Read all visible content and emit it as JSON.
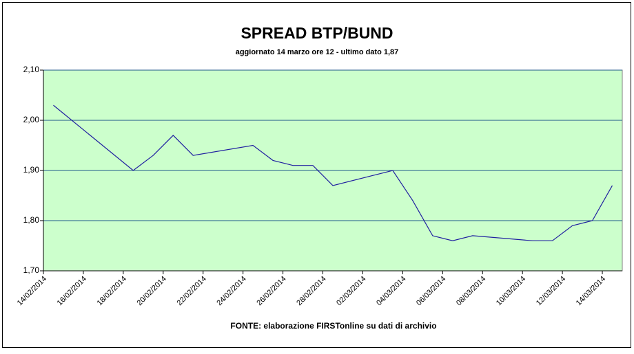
{
  "chart_data": {
    "type": "line",
    "title": "SPREAD BTP/BUND",
    "subtitle": "aggiornato 14 marzo ore 12 - ultimo dato 1,87",
    "source": "FONTE: elaborazione FIRSTonline su dati di archivio",
    "x": [
      "14/02/2014",
      "18/02/2014",
      "19/02/2014",
      "20/02/2014",
      "21/02/2014",
      "24/02/2014",
      "25/02/2014",
      "26/02/2014",
      "27/02/2014",
      "28/02/2014",
      "02/03/2014",
      "03/03/2014",
      "04/03/2014",
      "05/03/2014",
      "06/03/2014",
      "07/03/2014",
      "10/03/2014",
      "11/03/2014",
      "12/03/2014",
      "13/03/2014",
      "14/03/2014"
    ],
    "series": [
      {
        "color": "#1f1fa0",
        "values": [
          2.03,
          1.9,
          1.93,
          1.97,
          1.93,
          1.95,
          1.92,
          1.91,
          1.91,
          1.87,
          1.89,
          1.9,
          1.84,
          1.77,
          1.76,
          1.77,
          1.76,
          1.76,
          1.79,
          1.8,
          1.87
        ]
      }
    ],
    "xlim": [
      "14/02/2014",
      "15/03/2014"
    ],
    "xticks": [
      "14/02/2014",
      "16/02/2014",
      "18/02/2014",
      "20/02/2014",
      "22/02/2014",
      "24/02/2014",
      "26/02/2014",
      "28/02/2014",
      "02/03/2014",
      "04/03/2014",
      "06/03/2014",
      "08/03/2014",
      "10/03/2014",
      "12/03/2014",
      "14/03/2014"
    ],
    "ylim": [
      1.7,
      2.1
    ],
    "yticks": [
      {
        "value": 1.7,
        "label": "1,70"
      },
      {
        "value": 1.8,
        "label": "1,80"
      },
      {
        "value": 1.9,
        "label": "1,90"
      },
      {
        "value": 2.0,
        "label": "2,00"
      },
      {
        "value": 2.1,
        "label": "2,10"
      }
    ],
    "grid": true,
    "plot_background": "#ccffcc",
    "grid_color": "#1f5a8a"
  }
}
